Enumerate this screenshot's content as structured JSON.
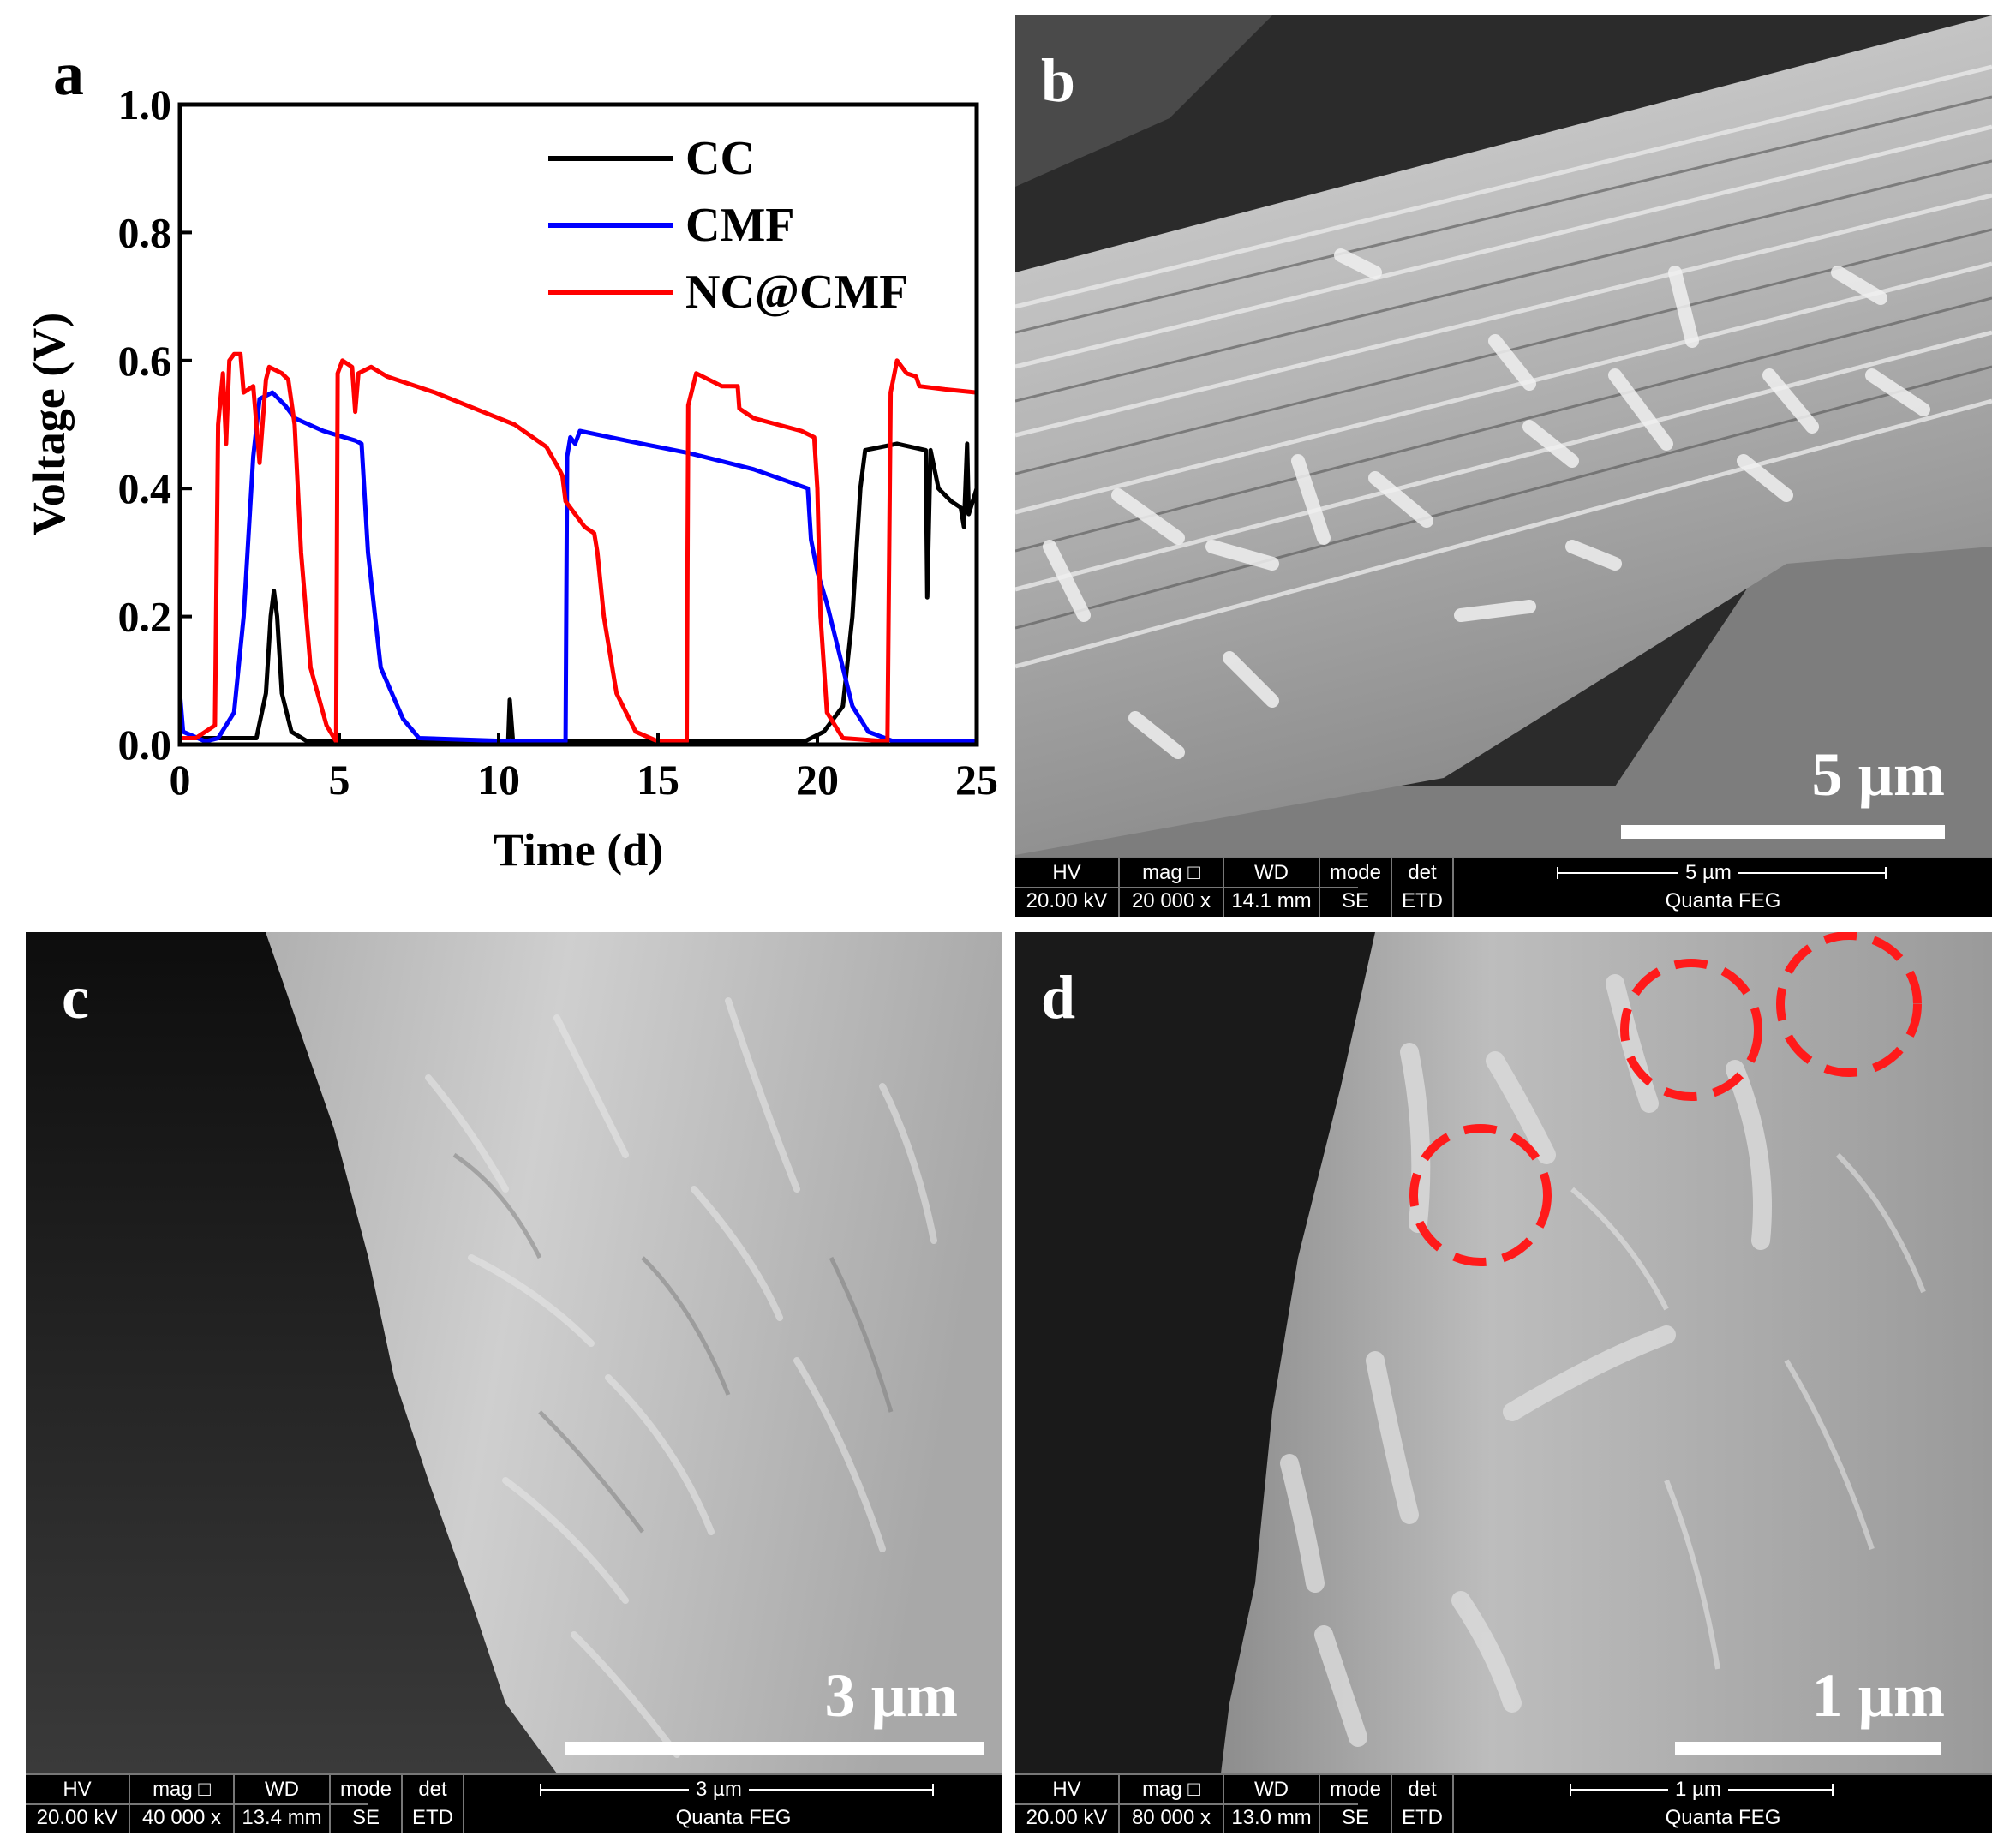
{
  "figure": {
    "panels": {
      "a": {
        "letter": "a"
      },
      "b": {
        "letter": "b",
        "scale_label": "5 µm",
        "info": {
          "hv_label": "HV",
          "hv_value": "20.00 kV",
          "mag_label": "mag □",
          "mag_value": "20 000 x",
          "wd_label": "WD",
          "wd_value": "14.1 mm",
          "mode_label": "mode",
          "mode_value": "SE",
          "det_label": "det",
          "det_value": "ETD",
          "bar_label": "5 µm",
          "instrument": "Quanta FEG"
        }
      },
      "c": {
        "letter": "c",
        "scale_label": "3 µm",
        "info": {
          "hv_label": "HV",
          "hv_value": "20.00 kV",
          "mag_label": "mag □",
          "mag_value": "40 000 x",
          "wd_label": "WD",
          "wd_value": "13.4 mm",
          "mode_label": "mode",
          "mode_value": "SE",
          "det_label": "det",
          "det_value": "ETD",
          "bar_label": "3 µm",
          "instrument": "Quanta FEG"
        }
      },
      "d": {
        "letter": "d",
        "scale_label": "1 µm",
        "info": {
          "hv_label": "HV",
          "hv_value": "20.00 kV",
          "mag_label": "mag □",
          "mag_value": "80 000 x",
          "wd_label": "WD",
          "wd_value": "13.0 mm",
          "mode_label": "mode",
          "mode_value": "SE",
          "det_label": "det",
          "det_value": "ETD",
          "bar_label": "1 µm",
          "instrument": "Quanta FEG"
        }
      }
    }
  },
  "chart_data": {
    "type": "line",
    "title": "",
    "xlabel": "Time (d)",
    "ylabel": "Voltage (V)",
    "xlim": [
      0,
      25
    ],
    "ylim": [
      0,
      1.0
    ],
    "xticks": [
      0,
      5,
      10,
      15,
      20,
      25
    ],
    "xtick_labels": [
      "0",
      "5",
      "10",
      "15",
      "20",
      "25"
    ],
    "yticks": [
      0.0,
      0.2,
      0.4,
      0.6,
      0.8,
      1.0
    ],
    "ytick_labels": [
      "0.0",
      "0.2",
      "0.4",
      "0.6",
      "0.8",
      "1.0"
    ],
    "grid": false,
    "legend_position": "top-right",
    "series": [
      {
        "name": "CC",
        "color": "#000000",
        "points": [
          [
            0,
            0.01
          ],
          [
            2.4,
            0.01
          ],
          [
            2.7,
            0.08
          ],
          [
            2.85,
            0.2
          ],
          [
            2.95,
            0.24
          ],
          [
            3.05,
            0.2
          ],
          [
            3.2,
            0.08
          ],
          [
            3.5,
            0.02
          ],
          [
            4.0,
            0.005
          ],
          [
            10.3,
            0.005
          ],
          [
            10.35,
            0.07
          ],
          [
            10.45,
            0.005
          ],
          [
            19.6,
            0.005
          ],
          [
            20.2,
            0.02
          ],
          [
            20.8,
            0.06
          ],
          [
            21.1,
            0.2
          ],
          [
            21.35,
            0.4
          ],
          [
            21.5,
            0.46
          ],
          [
            22.5,
            0.47
          ],
          [
            23.4,
            0.46
          ],
          [
            23.45,
            0.23
          ],
          [
            23.55,
            0.46
          ],
          [
            23.8,
            0.4
          ],
          [
            24.2,
            0.38
          ],
          [
            24.5,
            0.37
          ],
          [
            24.6,
            0.34
          ],
          [
            24.7,
            0.47
          ],
          [
            24.75,
            0.36
          ],
          [
            25,
            0.4
          ]
        ]
      },
      {
        "name": "CMF",
        "color": "#0000ff",
        "points": [
          [
            0,
            0.08
          ],
          [
            0.1,
            0.02
          ],
          [
            0.8,
            0.005
          ],
          [
            1.2,
            0.01
          ],
          [
            1.7,
            0.05
          ],
          [
            2.0,
            0.2
          ],
          [
            2.3,
            0.45
          ],
          [
            2.5,
            0.54
          ],
          [
            2.9,
            0.55
          ],
          [
            3.3,
            0.53
          ],
          [
            3.6,
            0.51
          ],
          [
            4.5,
            0.49
          ],
          [
            5.5,
            0.475
          ],
          [
            5.7,
            0.47
          ],
          [
            5.9,
            0.3
          ],
          [
            6.3,
            0.12
          ],
          [
            7.0,
            0.04
          ],
          [
            7.5,
            0.01
          ],
          [
            10.5,
            0.005
          ],
          [
            12.1,
            0.005
          ],
          [
            12.15,
            0.45
          ],
          [
            12.25,
            0.48
          ],
          [
            12.4,
            0.47
          ],
          [
            12.55,
            0.49
          ],
          [
            14.0,
            0.475
          ],
          [
            16.0,
            0.455
          ],
          [
            18.0,
            0.43
          ],
          [
            19.7,
            0.4
          ],
          [
            19.8,
            0.32
          ],
          [
            20.0,
            0.27
          ],
          [
            20.3,
            0.22
          ],
          [
            20.7,
            0.14
          ],
          [
            21.1,
            0.06
          ],
          [
            21.6,
            0.02
          ],
          [
            22.4,
            0.005
          ],
          [
            25,
            0.005
          ]
        ]
      },
      {
        "name": "NC@CMF",
        "color": "#ff0000",
        "points": [
          [
            0,
            0.01
          ],
          [
            0.5,
            0.01
          ],
          [
            1.1,
            0.03
          ],
          [
            1.2,
            0.5
          ],
          [
            1.35,
            0.58
          ],
          [
            1.45,
            0.47
          ],
          [
            1.55,
            0.6
          ],
          [
            1.7,
            0.61
          ],
          [
            1.9,
            0.61
          ],
          [
            2.0,
            0.55
          ],
          [
            2.3,
            0.56
          ],
          [
            2.5,
            0.44
          ],
          [
            2.7,
            0.57
          ],
          [
            2.8,
            0.59
          ],
          [
            3.0,
            0.585
          ],
          [
            3.2,
            0.58
          ],
          [
            3.4,
            0.57
          ],
          [
            3.6,
            0.5
          ],
          [
            3.8,
            0.3
          ],
          [
            4.1,
            0.12
          ],
          [
            4.6,
            0.03
          ],
          [
            4.9,
            0.005
          ],
          [
            4.95,
            0.58
          ],
          [
            5.1,
            0.6
          ],
          [
            5.4,
            0.59
          ],
          [
            5.5,
            0.52
          ],
          [
            5.6,
            0.58
          ],
          [
            6.0,
            0.59
          ],
          [
            6.5,
            0.575
          ],
          [
            8.0,
            0.55
          ],
          [
            9.5,
            0.52
          ],
          [
            10.5,
            0.5
          ],
          [
            11.5,
            0.465
          ],
          [
            11.9,
            0.43
          ],
          [
            12.0,
            0.42
          ],
          [
            12.1,
            0.38
          ],
          [
            12.4,
            0.36
          ],
          [
            12.7,
            0.34
          ],
          [
            13.0,
            0.33
          ],
          [
            13.1,
            0.3
          ],
          [
            13.3,
            0.2
          ],
          [
            13.7,
            0.08
          ],
          [
            14.3,
            0.02
          ],
          [
            15.0,
            0.005
          ],
          [
            15.9,
            0.005
          ],
          [
            15.95,
            0.53
          ],
          [
            16.2,
            0.58
          ],
          [
            17.0,
            0.56
          ],
          [
            17.5,
            0.56
          ],
          [
            17.55,
            0.525
          ],
          [
            18.0,
            0.51
          ],
          [
            19.5,
            0.49
          ],
          [
            19.9,
            0.48
          ],
          [
            20.0,
            0.4
          ],
          [
            20.1,
            0.2
          ],
          [
            20.3,
            0.05
          ],
          [
            20.8,
            0.01
          ],
          [
            22.2,
            0.005
          ],
          [
            22.3,
            0.55
          ],
          [
            22.5,
            0.6
          ],
          [
            22.8,
            0.58
          ],
          [
            23.1,
            0.575
          ],
          [
            23.2,
            0.56
          ],
          [
            24.0,
            0.555
          ],
          [
            25,
            0.55
          ]
        ]
      }
    ]
  }
}
